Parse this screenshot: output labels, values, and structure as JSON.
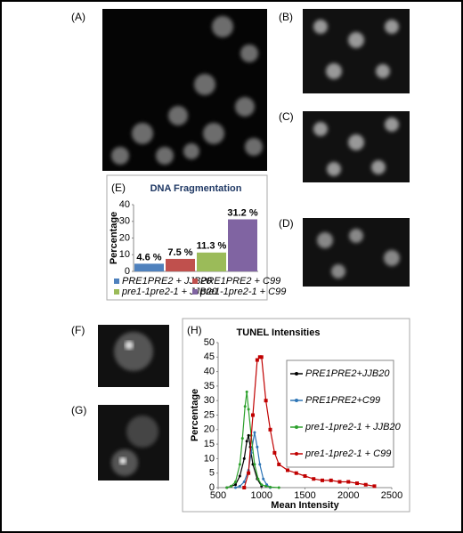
{
  "panels": [
    "(A)",
    "(B)",
    "(C)",
    "(D)",
    "(E)",
    "(F)",
    "(G)",
    "(H)"
  ],
  "chart_data": [
    {
      "type": "bar",
      "title": "DNA Fragmentation",
      "ylabel": "Percentage",
      "ylim": [
        0,
        40
      ],
      "yticks": [
        0,
        10,
        20,
        30,
        40
      ],
      "series": [
        {
          "name": "PRE1PRE2 + JJB20",
          "color": "#4f81bd",
          "values": [
            4.6
          ],
          "value_labels": [
            "4.6 %"
          ]
        },
        {
          "name": "PRE1PRE2 + C99",
          "color": "#c0504d",
          "values": [
            7.5
          ],
          "value_labels": [
            "7.5 %"
          ]
        },
        {
          "name": "pre1-1pre2-1 + JJB20",
          "color": "#9bbb59",
          "values": [
            11.3
          ],
          "value_labels": [
            "11.3 %"
          ]
        },
        {
          "name": "pre1-1pre2-1 + C99",
          "color": "#8064a2",
          "values": [
            31.2
          ],
          "value_labels": [
            "31.2 %"
          ]
        }
      ]
    },
    {
      "type": "line",
      "title": "TUNEL Intensities",
      "xlabel": "Mean Intensity",
      "ylabel": "Percentage",
      "xlim": [
        500,
        2500
      ],
      "xticks": [
        500,
        1000,
        1500,
        2000,
        2500
      ],
      "ylim": [
        0,
        50
      ],
      "yticks": [
        0,
        5,
        10,
        15,
        20,
        25,
        30,
        35,
        40,
        45,
        50
      ],
      "series": [
        {
          "name": "PRE1PRE2+JJB20",
          "color": "#000000",
          "x": [
            600,
            650,
            700,
            750,
            800,
            830,
            850,
            870,
            900,
            950,
            1000
          ],
          "values": [
            0,
            0.5,
            1,
            4,
            10,
            16,
            18,
            14,
            8,
            3,
            0.5
          ]
        },
        {
          "name": "PRE1PRE2+C99",
          "color": "#2e75b6",
          "x": [
            700,
            750,
            800,
            850,
            880,
            920,
            950,
            980,
            1020,
            1060,
            1100
          ],
          "values": [
            0,
            0.5,
            2,
            6,
            12,
            19,
            14,
            8,
            3,
            1,
            0
          ]
        },
        {
          "name": "pre1-1pre2-1 + JJB20",
          "color": "#2ca02c",
          "x": [
            600,
            650,
            700,
            750,
            780,
            810,
            830,
            850,
            880,
            920,
            960,
            1000,
            1050,
            1100,
            1200
          ],
          "values": [
            0,
            0.5,
            2,
            8,
            17,
            28,
            33,
            27,
            18,
            8,
            3,
            1,
            0.5,
            0.2,
            0
          ]
        },
        {
          "name": "pre1-1pre2-1 + C99",
          "color": "#c00000",
          "x": [
            800,
            850,
            900,
            950,
            980,
            1000,
            1050,
            1100,
            1150,
            1200,
            1300,
            1400,
            1500,
            1600,
            1700,
            1800,
            1900,
            2000,
            2100,
            2200,
            2300
          ],
          "values": [
            0,
            5,
            25,
            44,
            45,
            45,
            30,
            20,
            12,
            8,
            6,
            5,
            4,
            3,
            2.5,
            2.5,
            2,
            2,
            1.5,
            1,
            0.5
          ]
        }
      ]
    }
  ]
}
